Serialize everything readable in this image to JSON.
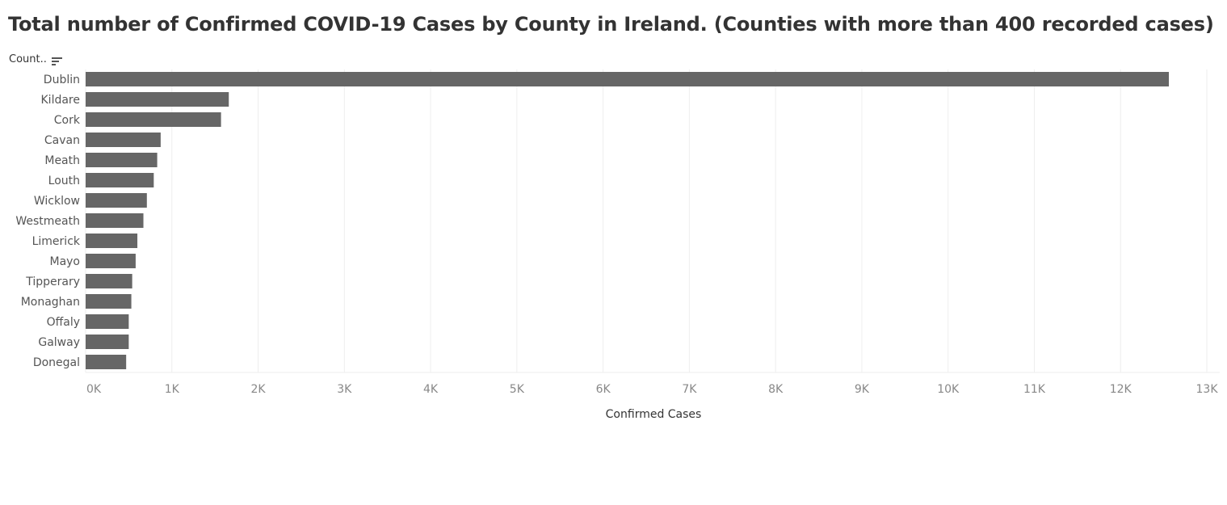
{
  "header": {
    "title": "Total number of Confirmed COVID-19 Cases by County in Ireland. (Counties with more than 400 recorded cases)",
    "field_label": "Count..",
    "sort_icon": "sort-descending-icon"
  },
  "colors": {
    "bar": "#666666",
    "grid": "#eeeeee",
    "text": "#333333"
  },
  "chart_data": {
    "type": "bar",
    "orientation": "horizontal",
    "title": "Total number of Confirmed COVID-19 Cases by County in Ireland. (Counties with more than 400 recorded cases)",
    "xlabel": "Confirmed Cases",
    "ylabel": "Count..",
    "xlim": [
      0,
      13000
    ],
    "grid": true,
    "categories": [
      "Dublin",
      "Kildare",
      "Cork",
      "Cavan",
      "Meath",
      "Louth",
      "Wicklow",
      "Westmeath",
      "Limerick",
      "Mayo",
      "Tipperary",
      "Monaghan",
      "Offaly",
      "Galway",
      "Donegal"
    ],
    "values": [
      12560,
      1660,
      1570,
      870,
      830,
      790,
      710,
      670,
      600,
      580,
      540,
      530,
      500,
      500,
      470
    ],
    "ticks": [
      0,
      1000,
      2000,
      3000,
      4000,
      5000,
      6000,
      7000,
      8000,
      9000,
      10000,
      11000,
      12000,
      13000
    ],
    "tick_labels": [
      "0K",
      "1K",
      "2K",
      "3K",
      "4K",
      "5K",
      "6K",
      "7K",
      "8K",
      "9K",
      "10K",
      "11K",
      "12K",
      "13K"
    ]
  }
}
